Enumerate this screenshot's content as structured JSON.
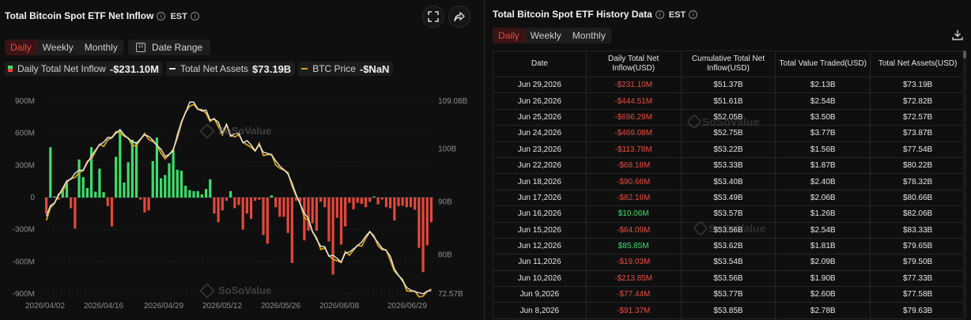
{
  "left_panel": {
    "title": "Total Bitcoin Spot ETF Net Inflow",
    "timezone": "EST",
    "tabs": [
      "Daily",
      "Weekly",
      "Monthly"
    ],
    "active_tab": "Daily",
    "date_range_label": "Date Range",
    "legend": [
      {
        "label": "Daily Total Net Inflow",
        "value": "-$231.10M"
      },
      {
        "label": "Total Net Assets",
        "value": "$73.19B"
      },
      {
        "label": "BTC Price",
        "value": "-$NaN"
      }
    ],
    "watermark": "SoSoValue",
    "icons": [
      "fullscreen-icon",
      "share-icon"
    ]
  },
  "colors": {
    "positive": "#3ddc6a",
    "negative": "#e5473b",
    "assets_line": "#e8e8e8",
    "btc_line": "#d4a418",
    "active_tab": "#e5473b"
  },
  "chart_data": {
    "type": "bar",
    "title": "Total Bitcoin Spot ETF Net Inflow",
    "x_tick_labels": [
      "2026/04/02",
      "2026/04/16",
      "2026/04/29",
      "2026/05/12",
      "2026/05/26",
      "2026/06/08",
      "2026/06/29"
    ],
    "y_left_ticks": [
      "900M",
      "600M",
      "300M",
      "0",
      "-300M",
      "-600M",
      "-900M"
    ],
    "y_right_ticks": [
      "109.08B",
      "100B",
      "90B",
      "80B",
      "72.57B"
    ],
    "ylim_left": [
      -900,
      900
    ],
    "ylim_right": [
      72.57,
      109.08
    ],
    "grid": true,
    "series": [
      {
        "name": "Daily Total Net Inflow",
        "unit": "M USD",
        "values": [
          -150,
          470,
          10,
          -20,
          75,
          150,
          -100,
          -290,
          355,
          190,
          90,
          470,
          55,
          270,
          50,
          -80,
          -270,
          380,
          630,
          140,
          330,
          540,
          520,
          -20,
          -140,
          -120,
          340,
          560,
          180,
          210,
          320,
          440,
          260,
          250,
          110,
          70,
          60,
          60,
          30,
          80,
          170,
          -150,
          -230,
          -120,
          -30,
          60,
          -100,
          -70,
          -300,
          -150,
          -200,
          -30,
          -20,
          -350,
          -430,
          20,
          -90,
          -180,
          -180,
          -330,
          -610,
          -30,
          -40,
          -400,
          -310,
          -240,
          -310,
          -40,
          -90,
          -410,
          -720,
          -190,
          -440,
          -270,
          -50,
          -110,
          -50,
          -60,
          -90,
          -40,
          10,
          -64,
          -19,
          -90,
          -100,
          -214,
          -82,
          -77,
          -91,
          -90,
          -114,
          -469,
          -696,
          -445,
          -231
        ]
      },
      {
        "name": "Total Net Assets",
        "unit": "B USD",
        "values": [
          87.3,
          89.3,
          89.8,
          91.2,
          92.6,
          94.0,
          94.3,
          95.4,
          96.0,
          96.0,
          97.4,
          98.7,
          99.8,
          100.8,
          101.3,
          102.2,
          102.2,
          103.0,
          103.7,
          102.7,
          102.0,
          101.4,
          101.1,
          101.9,
          102.7,
          102.4,
          101.7,
          100.7,
          100.0,
          98.6,
          99.0,
          99.7,
          102.7,
          105.2,
          106.9,
          108.9,
          108.9,
          107.6,
          107.2,
          107.4,
          105.5,
          105.7,
          105.1,
          103.1,
          104.7,
          102.4,
          102.9,
          103.0,
          101.2,
          101.6,
          100.8,
          99.7,
          100.8,
          99.4,
          99.2,
          98.9,
          97.8,
          96.8,
          96.1,
          95.3,
          93.6,
          91.4,
          89.6,
          87.8,
          86.9,
          84.4,
          82.9,
          81.6,
          81.5,
          79.7,
          79.9,
          79.3,
          78.6,
          80.3,
          80.5,
          81.1,
          81.7,
          82.4,
          83.5,
          84.4,
          83.3,
          82.3,
          81.2,
          80.8,
          79.7,
          77.3,
          76.1,
          75.0,
          73.8,
          73.3,
          73.0,
          72.8,
          72.6,
          73.1,
          73.2
        ]
      },
      {
        "name": "BTC Price",
        "values": [],
        "note": "-$NaN"
      }
    ]
  },
  "right_panel": {
    "title": "Total Bitcoin Spot ETF History Data",
    "timezone": "EST",
    "tabs": [
      "Daily",
      "Weekly",
      "Monthly"
    ],
    "active_tab": "Daily",
    "watermark": "SoSoValue",
    "columns": [
      "Date",
      "Daily Total Net Inflow(USD)",
      "Cumulative Total Net Inflow(USD)",
      "Total Value Traded(USD)",
      "Total Net Assets(USD)"
    ],
    "rows": [
      {
        "date": "Jun 29,2026",
        "inflow": "-$231.10M",
        "sign": "neg",
        "cumulative": "$51.37B",
        "traded": "$2.13B",
        "assets": "$73.19B"
      },
      {
        "date": "Jun 26,2026",
        "inflow": "-$444.51M",
        "sign": "neg",
        "cumulative": "$51.61B",
        "traded": "$2.54B",
        "assets": "$72.82B"
      },
      {
        "date": "Jun 25,2026",
        "inflow": "-$696.29M",
        "sign": "neg",
        "cumulative": "$52.05B",
        "traded": "$3.50B",
        "assets": "$72.57B"
      },
      {
        "date": "Jun 24,2026",
        "inflow": "-$469.08M",
        "sign": "neg",
        "cumulative": "$52.75B",
        "traded": "$3.77B",
        "assets": "$73.87B"
      },
      {
        "date": "Jun 23,2026",
        "inflow": "-$113.78M",
        "sign": "neg",
        "cumulative": "$53.22B",
        "traded": "$1.56B",
        "assets": "$77.54B"
      },
      {
        "date": "Jun 22,2026",
        "inflow": "-$68.18M",
        "sign": "neg",
        "cumulative": "$53.33B",
        "traded": "$1.87B",
        "assets": "$80.22B"
      },
      {
        "date": "Jun 18,2026",
        "inflow": "-$90.66M",
        "sign": "neg",
        "cumulative": "$53.40B",
        "traded": "$2.40B",
        "assets": "$78.32B"
      },
      {
        "date": "Jun 17,2026",
        "inflow": "-$82.16M",
        "sign": "neg",
        "cumulative": "$53.49B",
        "traded": "$2.06B",
        "assets": "$80.66B"
      },
      {
        "date": "Jun 16,2026",
        "inflow": "$10.06M",
        "sign": "pos",
        "cumulative": "$53.57B",
        "traded": "$1.26B",
        "assets": "$82.06B"
      },
      {
        "date": "Jun 15,2026",
        "inflow": "-$64.09M",
        "sign": "neg",
        "cumulative": "$53.56B",
        "traded": "$2.54B",
        "assets": "$83.33B"
      },
      {
        "date": "Jun 12,2026",
        "inflow": "$85.85M",
        "sign": "pos",
        "cumulative": "$53.62B",
        "traded": "$1.81B",
        "assets": "$79.65B"
      },
      {
        "date": "Jun 11,2026",
        "inflow": "-$19.03M",
        "sign": "neg",
        "cumulative": "$53.54B",
        "traded": "$2.09B",
        "assets": "$79.50B"
      },
      {
        "date": "Jun 10,2026",
        "inflow": "-$213.85M",
        "sign": "neg",
        "cumulative": "$53.56B",
        "traded": "$1.90B",
        "assets": "$77.33B"
      },
      {
        "date": "Jun 9,2026",
        "inflow": "-$77.44M",
        "sign": "neg",
        "cumulative": "$53.77B",
        "traded": "$2.60B",
        "assets": "$77.58B"
      },
      {
        "date": "Jun 8,2026",
        "inflow": "-$91.37M",
        "sign": "neg",
        "cumulative": "$53.85B",
        "traded": "$2.78B",
        "assets": "$79.63B"
      }
    ]
  }
}
